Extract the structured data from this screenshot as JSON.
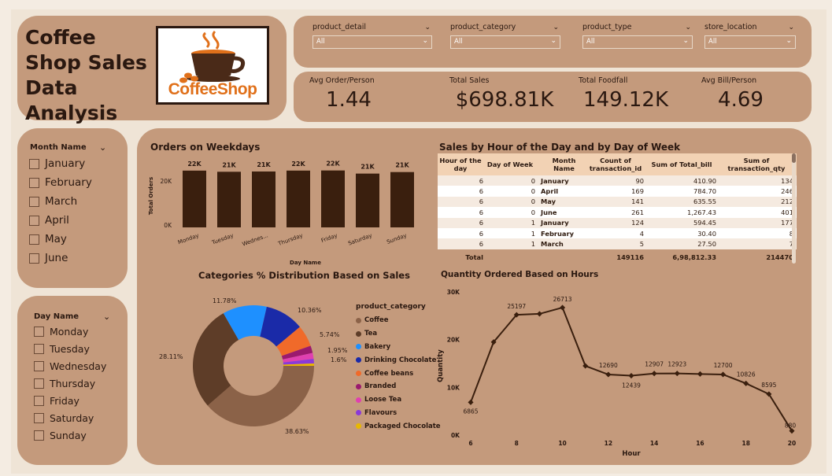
{
  "header": {
    "title": "Coffee Shop Sales  Data Analysis",
    "logo_text": "CoffeeShop"
  },
  "filters": [
    {
      "label": "product_detail",
      "value": "All"
    },
    {
      "label": "product_category",
      "value": "All"
    },
    {
      "label": "product_type",
      "value": "All"
    },
    {
      "label": "store_location",
      "value": "All"
    }
  ],
  "kpis": [
    {
      "label": "Avg Order/Person",
      "value": "1.44"
    },
    {
      "label": "Total Sales",
      "value": "$698.81K"
    },
    {
      "label": "Total Foodfall",
      "value": "149.12K"
    },
    {
      "label": "Avg Bill/Person",
      "value": "4.69"
    }
  ],
  "month_slicer": {
    "title": "Month Name",
    "items": [
      "January",
      "February",
      "March",
      "April",
      "May",
      "June"
    ]
  },
  "day_slicer": {
    "title": "Day Name",
    "items": [
      "Monday",
      "Tuesday",
      "Wednesday",
      "Thursday",
      "Friday",
      "Saturday",
      "Sunday"
    ]
  },
  "weekday_chart": {
    "title": "Orders on Weekdays"
  },
  "table": {
    "title": "Sales by Hour of the Day and by Day of Week",
    "headers": [
      "Hour of the day",
      "Day of Week",
      "Month Name",
      "Count of transaction_id",
      "Sum of Total_bill",
      "Sum of transaction_qty"
    ],
    "rows": [
      [
        "6",
        "0",
        "January",
        "90",
        "410.90",
        "134"
      ],
      [
        "6",
        "0",
        "April",
        "169",
        "784.70",
        "246"
      ],
      [
        "6",
        "0",
        "May",
        "141",
        "635.55",
        "212"
      ],
      [
        "6",
        "0",
        "June",
        "261",
        "1,267.43",
        "401"
      ],
      [
        "6",
        "1",
        "January",
        "124",
        "594.45",
        "177"
      ],
      [
        "6",
        "1",
        "February",
        "4",
        "30.40",
        "8"
      ],
      [
        "6",
        "1",
        "March",
        "5",
        "27.50",
        "7"
      ]
    ],
    "total": [
      "Total",
      "",
      "",
      "149116",
      "6,98,812.33",
      "214470"
    ]
  },
  "donut_chart": {
    "title": "Categories % Distribution Based on Sales"
  },
  "line_chart": {
    "title": "Quantity Ordered Based on Hours"
  },
  "colors": {
    "card": "#c49a7c",
    "bar": "#3a1f0e",
    "line": "#3a1f0e"
  },
  "chart_data": [
    {
      "type": "bar",
      "title": "Orders on Weekdays",
      "categories": [
        "Monday",
        "Tuesday",
        "Wednes...",
        "Thursday",
        "Friday",
        "Saturday",
        "Sunday"
      ],
      "values": [
        21643,
        21202,
        21310,
        21654,
        21701,
        20510,
        21096
      ],
      "data_labels": [
        "22K",
        "21K",
        "21K",
        "22K",
        "22K",
        "21K",
        "21K"
      ],
      "xlabel": "Day Name",
      "ylabel": "Total Orders",
      "y_ticks": [
        "0K",
        "20K"
      ],
      "ylim": [
        0,
        24000
      ]
    },
    {
      "type": "pie",
      "title": "Categories % Distribution Based on Sales",
      "legend_title": "product_category",
      "labels": [
        "Coffee",
        "Tea",
        "Bakery",
        "Drinking Chocolate",
        "Coffee beans",
        "Branded",
        "Loose Tea",
        "Flavours",
        "Packaged Chocolate"
      ],
      "values": [
        38.63,
        28.11,
        11.78,
        10.36,
        5.74,
        1.95,
        1.6,
        1.2,
        0.63
      ],
      "value_labels": [
        "38.63%",
        "28.11%",
        "11.78%",
        "10.36%",
        "5.74%",
        "1.95%",
        "1.6%",
        "",
        ""
      ],
      "colors": [
        "#8b6248",
        "#5e3d28",
        "#1e90ff",
        "#1a2aa8",
        "#f06a2a",
        "#9b1a6e",
        "#e040b0",
        "#8a3ad8",
        "#e8b800"
      ]
    },
    {
      "type": "line",
      "title": "Quantity Ordered Based on Hours",
      "x": [
        6,
        7,
        8,
        9,
        10,
        11,
        12,
        13,
        14,
        15,
        16,
        17,
        18,
        19,
        20
      ],
      "y": [
        6865,
        19500,
        25197,
        25400,
        26713,
        14500,
        12690,
        12439,
        12907,
        12923,
        12800,
        12700,
        10826,
        8595,
        880
      ],
      "point_labels": [
        "6865",
        "",
        "25197",
        "",
        "26713",
        "",
        "12690",
        "12439",
        "12907",
        "12923",
        "",
        "12700",
        "10826",
        "8595",
        "880"
      ],
      "xlabel": "Hour",
      "ylabel": "Quantity",
      "x_ticks": [
        "6",
        "8",
        "10",
        "12",
        "14",
        "16",
        "18",
        "20"
      ],
      "y_ticks": [
        "0K",
        "10K",
        "20K",
        "30K"
      ],
      "xlim": [
        6,
        20
      ],
      "ylim": [
        0,
        30000
      ]
    }
  ]
}
